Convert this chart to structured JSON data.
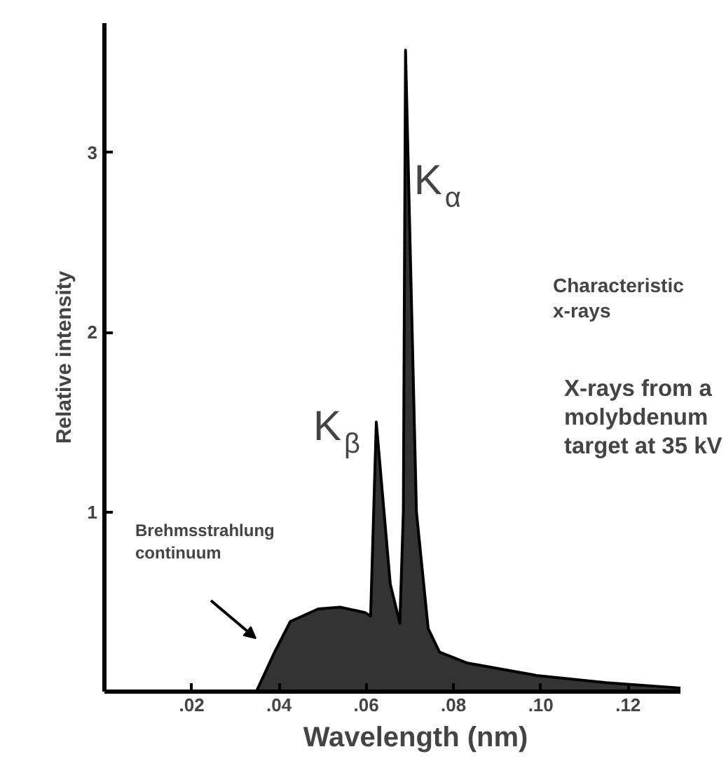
{
  "chart_data": {
    "type": "area",
    "xlabel": "Wavelength (nm)",
    "ylabel": "Relative intensity",
    "x": [
      0.0348,
      0.039,
      0.0426,
      0.049,
      0.054,
      0.0597,
      0.061,
      0.0623,
      0.0655,
      0.0677,
      0.0685,
      0.069,
      0.0715,
      0.0742,
      0.0768,
      0.083,
      0.099,
      0.115,
      0.132
    ],
    "series": [
      {
        "color": "#333333",
        "values": [
          0,
          0.22,
          0.39,
          0.46,
          0.47,
          0.44,
          0.42,
          1.5,
          0.6,
          0.38,
          1.0,
          3.57,
          1.0,
          0.35,
          0.22,
          0.16,
          0.09,
          0.05,
          0.02
        ]
      }
    ],
    "xlim": [
      0,
      0.132
    ],
    "ylim": [
      0,
      3.72
    ],
    "xticks": [
      {
        "value": 0.02,
        "label": ".02"
      },
      {
        "value": 0.04,
        "label": ".04"
      },
      {
        "value": 0.06,
        "label": ".06"
      },
      {
        "value": 0.08,
        "label": ".08"
      },
      {
        "value": 0.1,
        "label": ".10"
      },
      {
        "value": 0.12,
        "label": ".12"
      }
    ],
    "yticks": [
      1,
      2,
      3
    ],
    "annotations": [
      {
        "text": "K$_{α}$",
        "x": 0.069,
        "y": 3.57
      },
      {
        "text": "K$_{β}$",
        "x": 0.0623,
        "y": 1.5
      },
      "Brehmsstrahlung continuum",
      "Characteristic x-rays",
      "X-rays from a molybdenum target at 35 kV"
    ],
    "grid": false
  }
}
